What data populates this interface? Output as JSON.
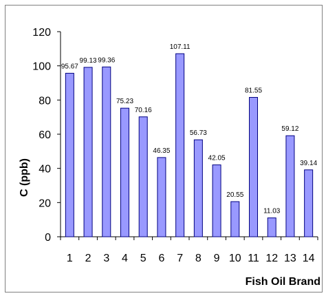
{
  "chart_data": {
    "type": "bar",
    "categories": [
      "1",
      "2",
      "3",
      "4",
      "5",
      "6",
      "7",
      "8",
      "9",
      "10",
      "11",
      "12",
      "13",
      "14"
    ],
    "values": [
      95.67,
      99.13,
      99.36,
      75.23,
      70.16,
      46.35,
      107.11,
      56.73,
      42.05,
      20.55,
      81.55,
      11.03,
      59.12,
      39.14
    ],
    "data_labels": [
      "95.67",
      "99.13",
      "99.36",
      "75.23",
      "70.16",
      "46.35",
      "107.11",
      "56.73",
      "42.05",
      "20.55",
      "81.55",
      "11.03",
      "59.12",
      "39.14"
    ],
    "xlabel": "Fish Oil Brand",
    "ylabel": "C (ppb)",
    "ylim": [
      0,
      120
    ],
    "yticks": [
      0,
      20,
      40,
      60,
      80,
      100,
      120
    ],
    "ytick_labels": [
      "0",
      "20",
      "40",
      "60",
      "80",
      "100",
      "120"
    ],
    "bar_color": "#9999ff",
    "bar_edge_color": "#000080",
    "grid": false,
    "legend": "none"
  }
}
